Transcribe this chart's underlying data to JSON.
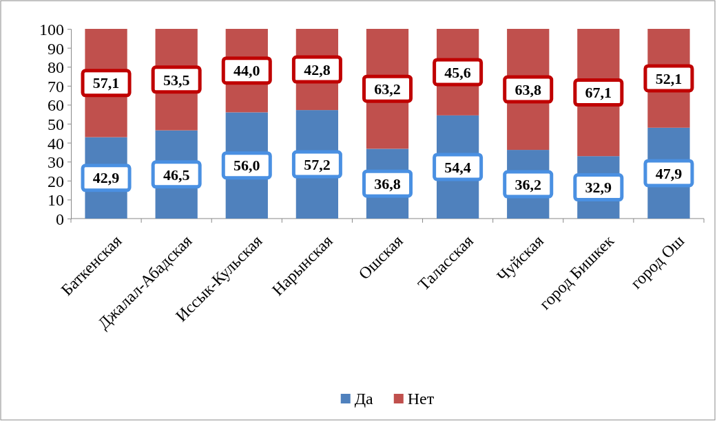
{
  "chart_data": {
    "type": "bar",
    "stacked": true,
    "categories": [
      "Баткенская",
      "Джалал-Абадская",
      "Иссык-Кульская",
      "Нарынская",
      "Ошская",
      "Таласская",
      "Чуйская",
      "город Бишкек",
      "город Ош"
    ],
    "series": [
      {
        "name": "Да",
        "color": "#4f81bd",
        "values": [
          42.9,
          46.5,
          56.0,
          57.2,
          36.8,
          54.4,
          36.2,
          32.9,
          47.9
        ],
        "value_labels": [
          "42,9",
          "46,5",
          "56,0",
          "57,2",
          "36,8",
          "54,4",
          "36,2",
          "32,9",
          "47,9"
        ]
      },
      {
        "name": "Нет",
        "color": "#c0504d",
        "values": [
          57.1,
          53.5,
          44.0,
          42.8,
          63.2,
          45.6,
          63.8,
          67.1,
          52.1
        ],
        "value_labels": [
          "57,1",
          "53,5",
          "44,0",
          "42,8",
          "63,2",
          "45,6",
          "63,8",
          "67,1",
          "52,1"
        ]
      }
    ],
    "ylim": [
      0,
      100
    ],
    "yticks": [
      0,
      10,
      20,
      30,
      40,
      50,
      60,
      70,
      80,
      90,
      100
    ],
    "grid": false,
    "legend": "bottom"
  }
}
